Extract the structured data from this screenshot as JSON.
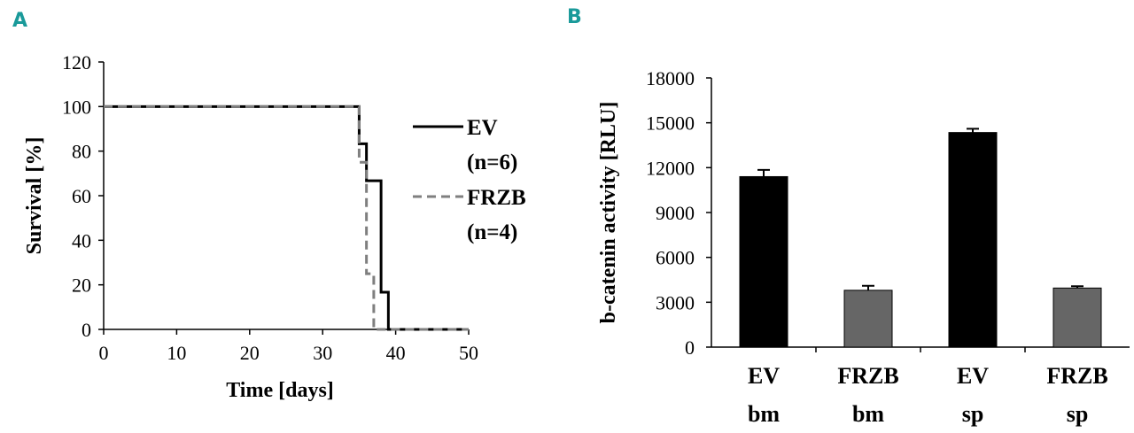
{
  "panel_a": {
    "letter": "A"
  },
  "panel_b": {
    "letter": "B"
  },
  "chart_data": [
    {
      "type": "line",
      "step": true,
      "title": "",
      "xlabel": "Time [days]",
      "ylabel": "Survival [%]",
      "xlim": [
        0,
        50
      ],
      "ylim": [
        0,
        120
      ],
      "xticks": [
        0,
        10,
        20,
        30,
        40,
        50
      ],
      "yticks": [
        0,
        20,
        40,
        60,
        80,
        100,
        120
      ],
      "grid": false,
      "legend_position": "right",
      "series": [
        {
          "name": "EV",
          "name_line2": "(n=6)",
          "style": "solid",
          "color": "#000000",
          "x": [
            0,
            35,
            35,
            36,
            36,
            37,
            37,
            38,
            38,
            39,
            39,
            50
          ],
          "y": [
            100,
            100,
            83.3,
            83.3,
            66.7,
            66.7,
            66.7,
            66.7,
            16.7,
            16.7,
            0,
            0
          ]
        },
        {
          "name": "FRZB",
          "name_line2": "(n=4)",
          "style": "dashed",
          "color": "#7f7f7f",
          "x": [
            0,
            35,
            35,
            36,
            36,
            37,
            37,
            50
          ],
          "y": [
            100,
            100,
            75,
            75,
            25,
            25,
            0,
            0
          ]
        }
      ]
    },
    {
      "type": "bar",
      "title": "",
      "xlabel": "",
      "ylabel": "b-catenin activity [RLU]",
      "ylim": [
        0,
        18000
      ],
      "yticks": [
        0,
        3000,
        6000,
        9000,
        12000,
        15000,
        18000
      ],
      "grid": false,
      "categories": [
        {
          "line1": "EV",
          "line2": "bm"
        },
        {
          "line1": "FRZB",
          "line2": "bm"
        },
        {
          "line1": "EV",
          "line2": "sp"
        },
        {
          "line1": "FRZB",
          "line2": "sp"
        }
      ],
      "values": [
        11400,
        3800,
        14350,
        3950
      ],
      "errors": [
        450,
        300,
        250,
        120
      ],
      "colors": [
        "#000000",
        "#666666",
        "#000000",
        "#666666"
      ]
    }
  ]
}
